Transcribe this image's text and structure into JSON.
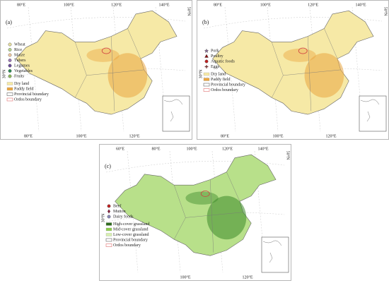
{
  "panels": [
    {
      "label": "(a)",
      "top_labels": [
        "80°E",
        "100°E",
        "120°E",
        "140°E"
      ],
      "right_label": "50°N",
      "left_label": "30°N",
      "bottom_labels": [
        "80°E",
        "100°E",
        "120°E"
      ],
      "fill": "#f6e9a6",
      "accent": "#eaa640",
      "legend": [
        {
          "label": "Wheat",
          "shape": "circle",
          "color": "#e8e0a0"
        },
        {
          "label": "Rice",
          "shape": "circle",
          "color": "#b8d890"
        },
        {
          "label": "Maize",
          "shape": "circle",
          "color": "#f0c8a0"
        },
        {
          "label": "Tubers",
          "shape": "circle",
          "color": "#9c7ab8"
        },
        {
          "label": "Legumes",
          "shape": "circle",
          "color": "#6a4a9a"
        },
        {
          "label": "Vegetables",
          "shape": "circle",
          "color": "#2e8b57"
        },
        {
          "label": "Fruits",
          "shape": "circle",
          "color": "#8fbc5a"
        },
        {
          "label": "Dry land",
          "shape": "rect",
          "color": "#f6e9a6"
        },
        {
          "label": "Paddy field",
          "shape": "rect",
          "color": "#eaa640"
        },
        {
          "label": "Provincial boundary",
          "shape": "box",
          "color": "#666666"
        },
        {
          "label": "Ordos boundary",
          "shape": "box",
          "color": "#e07070"
        }
      ]
    },
    {
      "label": "(b)",
      "top_labels": [
        "80°E",
        "100°E",
        "120°E",
        "140°E"
      ],
      "right_label": "50°N",
      "left_label": "30°N",
      "bottom_labels": [
        "80°E",
        "100°E",
        "120°E"
      ],
      "fill": "#f6e9a6",
      "accent": "#eaa640",
      "legend": [
        {
          "label": "Pork",
          "shape": "star",
          "color": "#8a6a9a"
        },
        {
          "label": "Poultry",
          "shape": "triangle",
          "color": "#8b1010"
        },
        {
          "label": "Aquatic foods",
          "shape": "circle",
          "color": "#c02020"
        },
        {
          "label": "Eggs",
          "shape": "cross",
          "color": "#6a2a2a"
        },
        {
          "label": "Dry land",
          "shape": "rect",
          "color": "#f6e9a6"
        },
        {
          "label": "Paddy field",
          "shape": "rect",
          "color": "#eaa640"
        },
        {
          "label": "Provincial boundary",
          "shape": "box",
          "color": "#666666"
        },
        {
          "label": "Ordos boundary",
          "shape": "box",
          "color": "#e07070"
        }
      ]
    },
    {
      "label": "(c)",
      "top_labels": [
        "60°E",
        "80°E",
        "100°E",
        "120°E",
        "140°E"
      ],
      "right_label": "50°N",
      "left_label": "30°N",
      "bottom_labels": [
        "100°E",
        "120°E"
      ],
      "fill": "#b8e08a",
      "accent": "#3c8a2a",
      "legend": [
        {
          "label": "Beef",
          "shape": "circle",
          "color": "#c02020"
        },
        {
          "label": "Mutton",
          "shape": "diamond",
          "color": "#8b1a3a"
        },
        {
          "label": "Dairy foods",
          "shape": "circle",
          "color": "#8a8ab8"
        },
        {
          "label": "High-cover grassland",
          "shape": "rect",
          "color": "#2e6a1e"
        },
        {
          "label": "Mid-cover grassland",
          "shape": "rect",
          "color": "#8ccc4a"
        },
        {
          "label": "Low-cover grassland",
          "shape": "rect",
          "color": "#d8f0b0"
        },
        {
          "label": "Provincial boundary",
          "shape": "box",
          "color": "#666666"
        },
        {
          "label": "Ordos boundary",
          "shape": "box",
          "color": "#e07070"
        }
      ]
    }
  ]
}
